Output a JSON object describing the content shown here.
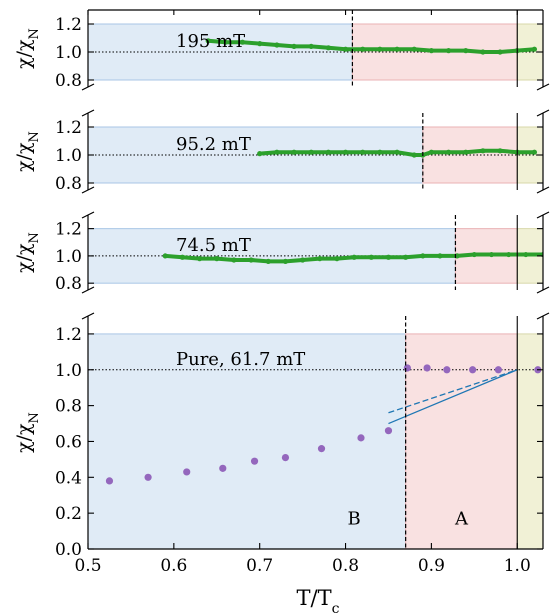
{
  "chart_data": [
    {
      "type": "scatter",
      "label": "195 mT",
      "ylabel": "χ/χN",
      "ylim": [
        0.75,
        1.3
      ],
      "yticks": [
        0.8,
        1.0,
        1.2
      ],
      "xlim": [
        0.5,
        1.03
      ],
      "reference_line_y": 1.0,
      "transition_x": 0.808,
      "tc_x": 1.0,
      "region_B": {
        "x": [
          0.5,
          0.808
        ],
        "y": [
          0.8,
          1.2
        ]
      },
      "region_A": {
        "x": [
          0.808,
          1.0
        ],
        "y": [
          0.8,
          1.2
        ]
      },
      "series": [
        {
          "color": "#2ca02c",
          "x": [
            0.64,
            0.66,
            0.68,
            0.7,
            0.72,
            0.74,
            0.76,
            0.78,
            0.8,
            0.82,
            0.84,
            0.86,
            0.88,
            0.9,
            0.92,
            0.94,
            0.96,
            0.98,
            1.0,
            1.02
          ],
          "y": [
            1.08,
            1.07,
            1.07,
            1.06,
            1.05,
            1.04,
            1.04,
            1.03,
            1.02,
            1.02,
            1.02,
            1.02,
            1.02,
            1.01,
            1.01,
            1.01,
            1.0,
            1.0,
            1.01,
            1.02
          ]
        }
      ]
    },
    {
      "type": "scatter",
      "label": "95.2 mT",
      "ylabel": "χ/χN",
      "ylim": [
        0.75,
        1.3
      ],
      "yticks": [
        0.8,
        1.0,
        1.2
      ],
      "xlim": [
        0.5,
        1.03
      ],
      "reference_line_y": 1.0,
      "transition_x": 0.89,
      "tc_x": 1.0,
      "region_B": {
        "x": [
          0.5,
          0.89
        ],
        "y": [
          0.8,
          1.2
        ]
      },
      "region_A": {
        "x": [
          0.89,
          1.0
        ],
        "y": [
          0.8,
          1.2
        ]
      },
      "series": [
        {
          "color": "#2ca02c",
          "x": [
            0.7,
            0.72,
            0.74,
            0.76,
            0.78,
            0.8,
            0.82,
            0.84,
            0.86,
            0.88,
            0.89,
            0.9,
            0.92,
            0.94,
            0.96,
            0.98,
            1.0,
            1.02
          ],
          "y": [
            1.01,
            1.02,
            1.02,
            1.02,
            1.02,
            1.02,
            1.02,
            1.02,
            1.02,
            1.0,
            1.0,
            1.02,
            1.02,
            1.02,
            1.03,
            1.03,
            1.02,
            1.02
          ]
        }
      ]
    },
    {
      "type": "scatter",
      "label": "74.5 mT",
      "ylabel": "χ/χN",
      "ylim": [
        0.75,
        1.3
      ],
      "yticks": [
        0.8,
        1.0,
        1.2
      ],
      "xlim": [
        0.5,
        1.03
      ],
      "reference_line_y": 1.0,
      "transition_x": 0.928,
      "tc_x": 1.0,
      "region_B": {
        "x": [
          0.5,
          0.928
        ],
        "y": [
          0.8,
          1.2
        ]
      },
      "region_A": {
        "x": [
          0.928,
          1.0
        ],
        "y": [
          0.8,
          1.2
        ]
      },
      "series": [
        {
          "color": "#2ca02c",
          "x": [
            0.59,
            0.61,
            0.63,
            0.65,
            0.67,
            0.69,
            0.71,
            0.73,
            0.75,
            0.77,
            0.79,
            0.81,
            0.83,
            0.85,
            0.87,
            0.89,
            0.91,
            0.93,
            0.95,
            0.97,
            0.99,
            1.01,
            1.03
          ],
          "y": [
            1.0,
            0.99,
            0.98,
            0.98,
            0.97,
            0.97,
            0.96,
            0.96,
            0.97,
            0.98,
            0.98,
            0.99,
            0.99,
            0.99,
            0.99,
            1.0,
            1.0,
            1.0,
            1.01,
            1.01,
            1.01,
            1.01,
            1.01
          ]
        }
      ]
    },
    {
      "type": "scatter",
      "label": "Pure, 61.7 mT",
      "ylabel": "χ/χN",
      "xlabel": "T/Tc",
      "ylim": [
        0.0,
        1.3
      ],
      "yticks": [
        0.0,
        0.2,
        0.4,
        0.6,
        0.8,
        1.0,
        1.2
      ],
      "xlim": [
        0.5,
        1.03
      ],
      "xticks": [
        0.5,
        0.6,
        0.7,
        0.8,
        0.9,
        1.0
      ],
      "reference_line_y": 1.0,
      "transition_x": 0.87,
      "tc_x": 1.0,
      "region_B": {
        "x": [
          0.5,
          0.87
        ],
        "y": [
          0.0,
          1.2
        ]
      },
      "region_A": {
        "x": [
          0.87,
          1.0
        ],
        "y": [
          0.0,
          1.2
        ]
      },
      "region_labels": [
        {
          "text": "B",
          "x": 0.81,
          "y": 0.17
        },
        {
          "text": "A",
          "x": 0.935,
          "y": 0.17
        }
      ],
      "series": [
        {
          "color": "#9467bd",
          "x": [
            0.525,
            0.57,
            0.615,
            0.657,
            0.694,
            0.73,
            0.772,
            0.818,
            0.85,
            0.872,
            0.895,
            0.918,
            0.948,
            0.978,
            1.024
          ],
          "y": [
            0.38,
            0.4,
            0.43,
            0.45,
            0.49,
            0.51,
            0.56,
            0.62,
            0.66,
            1.01,
            1.01,
            1.0,
            1.0,
            1.0,
            1.0
          ]
        }
      ],
      "lines": [
        {
          "style": "solid",
          "color": "#1f77b4",
          "x": [
            0.85,
            1.0
          ],
          "y": [
            0.7,
            1.0
          ]
        },
        {
          "style": "dashed",
          "color": "#1f77b4",
          "x": [
            0.85,
            1.0
          ],
          "y": [
            0.76,
            1.0
          ]
        }
      ]
    }
  ]
}
